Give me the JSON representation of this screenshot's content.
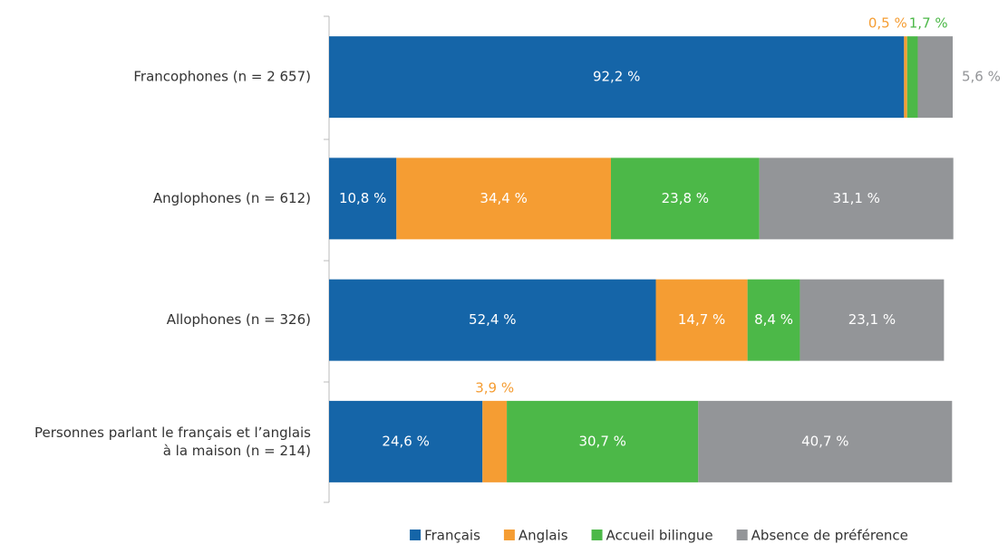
{
  "chart_data": {
    "type": "stacked-barh",
    "categories": [
      "Francophones (n = 2 657)",
      "Anglophones (n = 612)",
      "Allophones (n = 326)",
      [
        "Personnes parlant le français et l’anglais",
        "à la maison (n = 214)"
      ]
    ],
    "series": [
      {
        "name": "Français",
        "color": "#1565a8",
        "values": [
          92.2,
          10.8,
          52.4,
          24.6
        ],
        "value_labels": [
          "92,2 %",
          "10,8 %",
          "52,4 %",
          "24,6 %"
        ]
      },
      {
        "name": "Anglais",
        "color": "#f59d33",
        "values": [
          0.5,
          34.4,
          14.7,
          3.9
        ],
        "value_labels": [
          "0,5 %",
          "34,4 %",
          "14,7 %",
          "3,9 %"
        ]
      },
      {
        "name": "Accueil bilingue",
        "color": "#4cb848",
        "values": [
          1.7,
          23.8,
          8.4,
          30.7
        ],
        "value_labels": [
          "1,7 %",
          "23,8 %",
          "8,4 %",
          "30,7 %"
        ]
      },
      {
        "name": "Absence de préférence",
        "color": "#939598",
        "values": [
          5.6,
          31.1,
          23.1,
          40.7
        ],
        "value_labels": [
          "5,6 %",
          "31,1 %",
          "23,1 %",
          "40,7 %"
        ]
      }
    ],
    "xlim": [
      0,
      100
    ],
    "legend": "bottom"
  }
}
